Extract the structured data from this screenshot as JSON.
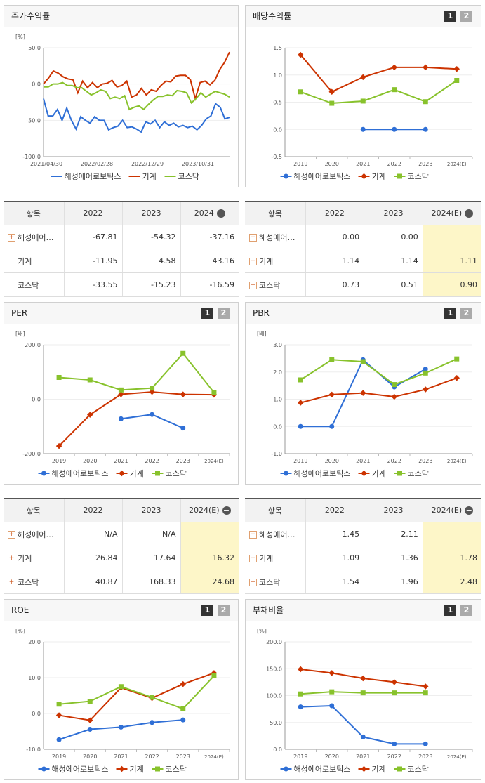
{
  "colors": {
    "company": "#2f6fd6",
    "industry": "#cc3300",
    "kosdaq": "#88c22c"
  },
  "legend": {
    "company": "해성에어로보틱스",
    "industry": "기계",
    "kosdaq": "코스닥"
  },
  "page_buttons": [
    "1",
    "2"
  ],
  "panels": {
    "stock": {
      "title": "주가수익률"
    },
    "dividend": {
      "title": "배당수익률"
    },
    "per": {
      "title": "PER"
    },
    "pbr": {
      "title": "PBR"
    },
    "roe": {
      "title": "ROE"
    },
    "debt": {
      "title": "부채비율"
    }
  },
  "chart_data": [
    {
      "id": "stock",
      "type": "line",
      "unit": "[%]",
      "ylim": [
        -100,
        50
      ],
      "yticks": [
        "50.0",
        "0.0",
        "-50.0",
        "-100.0"
      ],
      "xticks": [
        "2021/04/30",
        "2022/02/28",
        "2022/12/29",
        "2023/10/31"
      ],
      "series": [
        {
          "key": "company",
          "values": [
            -20,
            -44,
            -44,
            -35,
            -50,
            -33,
            -50,
            -62,
            -45,
            -50,
            -54,
            -45,
            -50,
            -50,
            -63,
            -60,
            -58,
            -50,
            -60,
            -59,
            -62,
            -66,
            -52,
            -55,
            -50,
            -60,
            -52,
            -57,
            -54,
            -59,
            -57,
            -60,
            -58,
            -63,
            -57,
            -48,
            -44,
            -27,
            -32,
            -48,
            -46
          ]
        },
        {
          "key": "industry",
          "values": [
            0,
            8,
            18,
            15,
            10,
            7,
            6,
            -12,
            4,
            -5,
            2,
            -5,
            0,
            1,
            5,
            -4,
            -2,
            4,
            -18,
            -15,
            -6,
            -15,
            -8,
            -10,
            -2,
            4,
            3,
            11,
            12,
            12,
            6,
            -20,
            2,
            4,
            -1,
            5,
            20,
            30,
            44
          ]
        },
        {
          "key": "kosdaq",
          "values": [
            -4,
            -4,
            0,
            0,
            2,
            -2,
            -2,
            -5,
            -5,
            -10,
            -15,
            -12,
            -8,
            -10,
            -20,
            -18,
            -20,
            -16,
            -35,
            -32,
            -30,
            -35,
            -28,
            -22,
            -17,
            -17,
            -15,
            -16,
            -9,
            -10,
            -12,
            -26,
            -20,
            -12,
            -18,
            -14,
            -10,
            -12,
            -14,
            -18
          ]
        }
      ]
    },
    {
      "id": "dividend",
      "type": "line",
      "unit": "",
      "ylim": [
        -0.5,
        1.5
      ],
      "yticks": [
        "1.5",
        "1.0",
        "0.5",
        "0.0",
        "-0.5"
      ],
      "categories": [
        "2019",
        "2020",
        "2021",
        "2022",
        "2023",
        "2024(E)"
      ],
      "series": [
        {
          "key": "company",
          "values": [
            null,
            null,
            0.0,
            0.0,
            0.0,
            null
          ]
        },
        {
          "key": "industry",
          "values": [
            1.37,
            0.69,
            0.96,
            1.14,
            1.14,
            1.11
          ]
        },
        {
          "key": "kosdaq",
          "values": [
            0.69,
            0.48,
            0.52,
            0.73,
            0.51,
            0.9
          ]
        }
      ]
    },
    {
      "id": "per",
      "type": "line",
      "unit": "[배]",
      "ylim": [
        -200,
        200
      ],
      "yticks": [
        "200.0",
        "0.0",
        "-200.0"
      ],
      "categories": [
        "2019",
        "2020",
        "2021",
        "2022",
        "2023",
        "2024(E)"
      ],
      "series": [
        {
          "key": "company",
          "values": [
            null,
            null,
            -72,
            -56,
            -106,
            null
          ]
        },
        {
          "key": "industry",
          "values": [
            -172,
            -57,
            18,
            26.84,
            17.64,
            16.32
          ]
        },
        {
          "key": "kosdaq",
          "values": [
            80,
            71,
            34,
            40.87,
            168.33,
            24.68
          ]
        }
      ]
    },
    {
      "id": "pbr",
      "type": "line",
      "unit": "[배]",
      "ylim": [
        -1,
        3
      ],
      "yticks": [
        "3.0",
        "2.0",
        "1.0",
        "0.0",
        "-1.0"
      ],
      "categories": [
        "2019",
        "2020",
        "2021",
        "2022",
        "2023",
        "2024(E)"
      ],
      "series": [
        {
          "key": "company",
          "values": [
            0.0,
            0.0,
            2.45,
            1.45,
            2.11,
            null
          ]
        },
        {
          "key": "industry",
          "values": [
            0.87,
            1.17,
            1.23,
            1.09,
            1.36,
            1.78
          ]
        },
        {
          "key": "kosdaq",
          "values": [
            1.71,
            2.45,
            2.38,
            1.54,
            1.96,
            2.48
          ]
        }
      ]
    },
    {
      "id": "roe",
      "type": "line",
      "unit": "[%]",
      "ylim": [
        -10,
        20
      ],
      "yticks": [
        "20.0",
        "10.0",
        "0.0",
        "-10.0"
      ],
      "categories": [
        "2019",
        "2020",
        "2021",
        "2022",
        "2023",
        "2024(E)"
      ],
      "series": [
        {
          "key": "company",
          "values": [
            -7.3,
            -4.4,
            -3.8,
            -2.5,
            -1.8,
            null
          ]
        },
        {
          "key": "industry",
          "values": [
            -0.5,
            -1.9,
            7.2,
            4.3,
            8.2,
            11.3
          ]
        },
        {
          "key": "kosdaq",
          "values": [
            2.6,
            3.4,
            7.5,
            4.5,
            1.3,
            10.5
          ]
        }
      ]
    },
    {
      "id": "debt",
      "type": "line",
      "unit": "[%]",
      "ylim": [
        0,
        200
      ],
      "yticks": [
        "200.0",
        "150.0",
        "100.0",
        "50.0",
        "0.0"
      ],
      "categories": [
        "2019",
        "2020",
        "2021",
        "2022",
        "2023",
        "2024(E)"
      ],
      "series": [
        {
          "key": "company",
          "values": [
            79,
            81,
            23,
            10,
            10,
            null
          ]
        },
        {
          "key": "industry",
          "values": [
            149,
            142,
            132,
            125,
            117,
            null
          ]
        },
        {
          "key": "kosdaq",
          "values": [
            103,
            107,
            105,
            105,
            105,
            null
          ]
        }
      ]
    }
  ],
  "tables": {
    "stock": {
      "head": [
        "항목",
        "2022",
        "2023",
        "2024"
      ],
      "rows": [
        {
          "name": "해성에어…",
          "plus": true,
          "cells": [
            "-67.81",
            "-54.32",
            "-37.16"
          ]
        },
        {
          "name": "기계",
          "plus": false,
          "cells": [
            "-11.95",
            "4.58",
            "43.16"
          ]
        },
        {
          "name": "코스닥",
          "plus": false,
          "cells": [
            "-33.55",
            "-15.23",
            "-16.59"
          ]
        }
      ]
    },
    "dividend": {
      "head": [
        "항목",
        "2022",
        "2023",
        "2024(E)"
      ],
      "rows": [
        {
          "name": "해성에어…",
          "plus": true,
          "cells": [
            "0.00",
            "0.00",
            ""
          ]
        },
        {
          "name": "기계",
          "plus": true,
          "cells": [
            "1.14",
            "1.14",
            "1.11"
          ]
        },
        {
          "name": "코스닥",
          "plus": true,
          "cells": [
            "0.73",
            "0.51",
            "0.90"
          ]
        }
      ]
    },
    "per": {
      "head": [
        "항목",
        "2022",
        "2023",
        "2024(E)"
      ],
      "rows": [
        {
          "name": "해성에어…",
          "plus": true,
          "cells": [
            "N/A",
            "N/A",
            ""
          ]
        },
        {
          "name": "기계",
          "plus": true,
          "cells": [
            "26.84",
            "17.64",
            "16.32"
          ]
        },
        {
          "name": "코스닥",
          "plus": true,
          "cells": [
            "40.87",
            "168.33",
            "24.68"
          ]
        }
      ]
    },
    "pbr": {
      "head": [
        "항목",
        "2022",
        "2023",
        "2024(E)"
      ],
      "rows": [
        {
          "name": "해성에어…",
          "plus": true,
          "cells": [
            "1.45",
            "2.11",
            ""
          ]
        },
        {
          "name": "기계",
          "plus": true,
          "cells": [
            "1.09",
            "1.36",
            "1.78"
          ]
        },
        {
          "name": "코스닥",
          "plus": true,
          "cells": [
            "1.54",
            "1.96",
            "2.48"
          ]
        }
      ]
    }
  }
}
